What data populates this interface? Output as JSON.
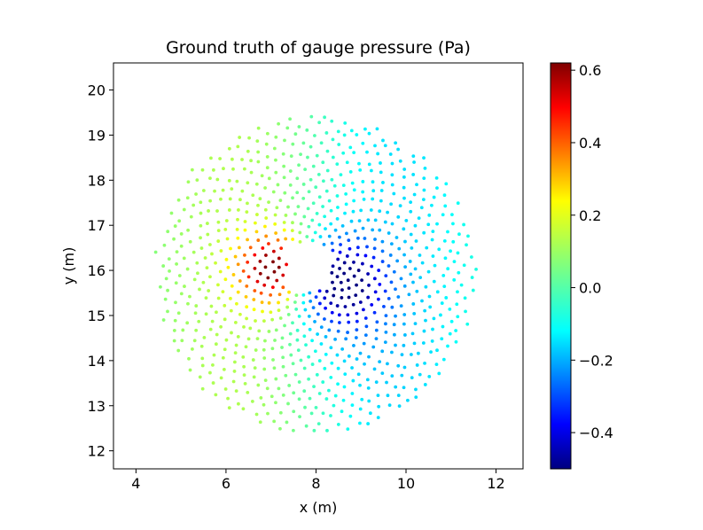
{
  "chart_data": {
    "type": "scatter",
    "title": "Ground truth of gauge pressure (Pa)",
    "xlabel": "x (m)",
    "ylabel": "y (m)",
    "xlim": [
      3.5,
      12.6
    ],
    "ylim": [
      11.6,
      20.6
    ],
    "xticks": [
      "4",
      "6",
      "8",
      "10",
      "12"
    ],
    "yticks": [
      "12",
      "13",
      "14",
      "15",
      "16",
      "17",
      "18",
      "19",
      "20"
    ],
    "colormap": "jet",
    "colorbar": {
      "range": [
        -0.5,
        0.62
      ],
      "ticks": [
        "−0.4",
        "−0.2",
        "0.0",
        "0.2",
        "0.4",
        "0.6"
      ],
      "tick_values": [
        -0.4,
        -0.2,
        0.0,
        0.2,
        0.4,
        0.6
      ]
    },
    "field": {
      "description_values": "pressure sampled on a spiral point cloud centered near (8.0, 15.9) with radius about 3.5 m; an obstacle notch lies between x 7.4-8.4 and y 15.6-16.6",
      "center": [
        8.0,
        15.9
      ],
      "radius": 3.55,
      "obstacle": {
        "x": [
          7.35,
          8.35
        ],
        "y": [
          15.55,
          16.55
        ]
      },
      "point_count": 900,
      "min_value": -0.5,
      "max_value": 0.62
    },
    "grid": false,
    "legend": "none"
  }
}
